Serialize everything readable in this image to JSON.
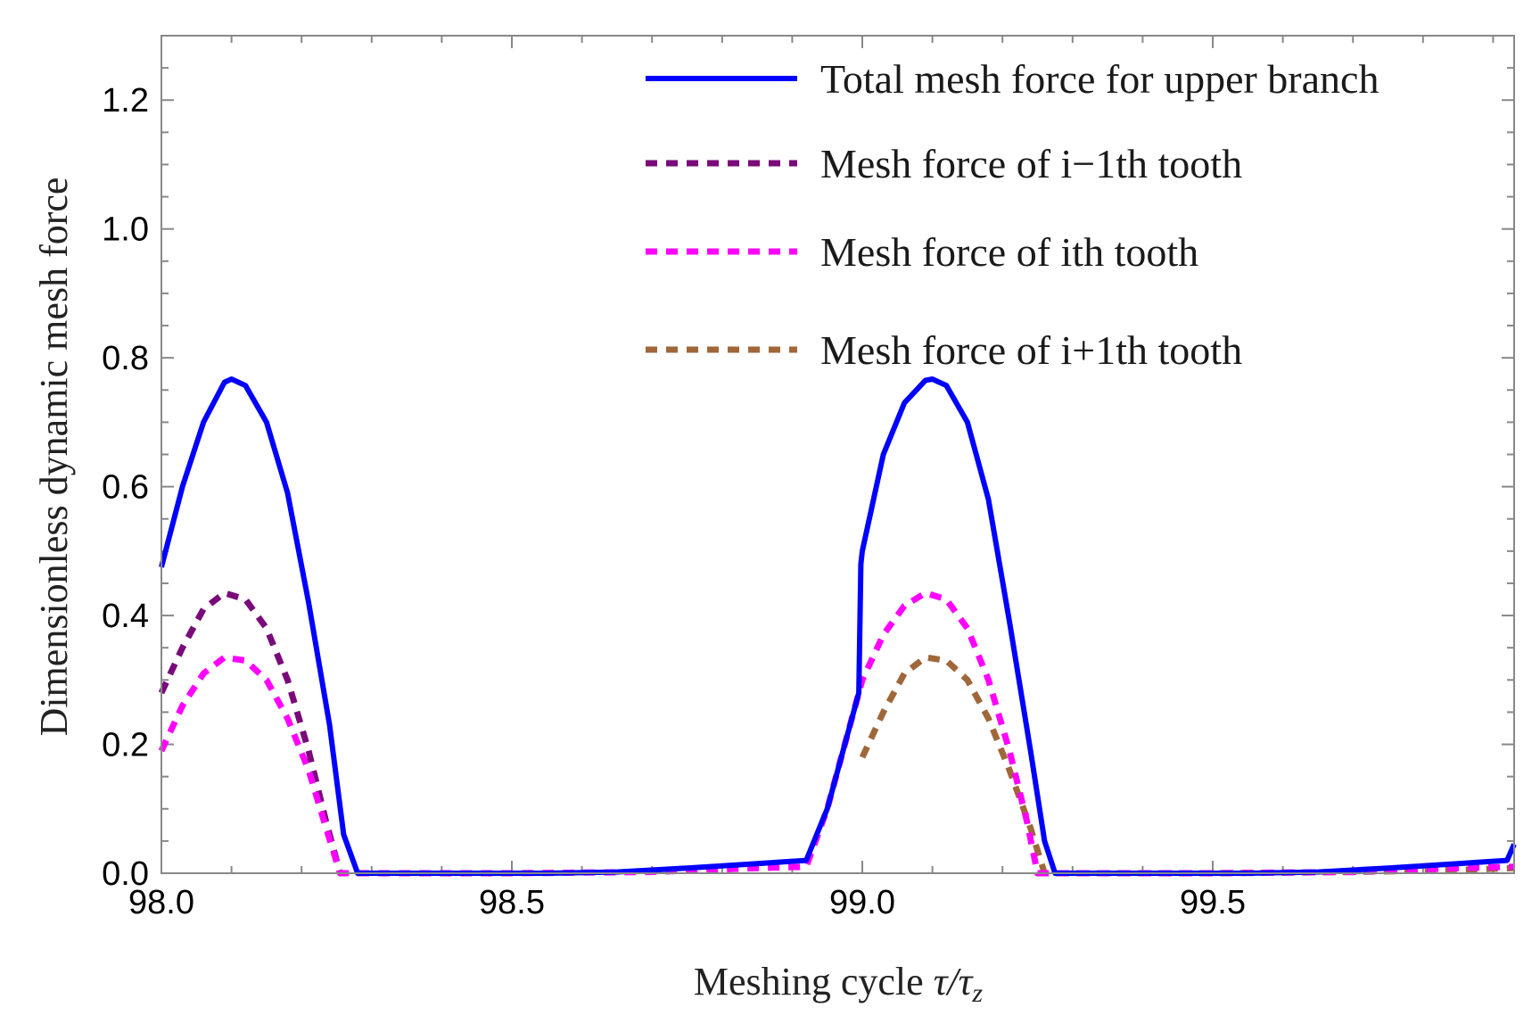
{
  "chart_data": {
    "type": "line",
    "title": "",
    "xlabel_text": "Meshing cycle",
    "xlabel_symbol": "τ/τ",
    "xlabel_subscript": "z",
    "ylabel": "Dimensionless dynamic mesh force",
    "xlim": [
      98.0,
      99.93
    ],
    "ylim": [
      0.0,
      1.3
    ],
    "x_ticks": [
      98.0,
      98.5,
      99.0,
      99.5
    ],
    "x_tick_labels": [
      "98.0",
      "98.5",
      "99.0",
      "99.5"
    ],
    "y_ticks": [
      0.0,
      0.2,
      0.4,
      0.6,
      0.8,
      1.0,
      1.2
    ],
    "y_tick_labels": [
      "0.0",
      "0.2",
      "0.4",
      "0.6",
      "0.8",
      "1.0",
      "1.2"
    ],
    "legend_position": "top-right",
    "series": [
      {
        "name": "Total mesh force for upper branch",
        "color": "#0000ff",
        "style": "solid",
        "points": [
          [
            98.0,
            0.475
          ],
          [
            98.03,
            0.6
          ],
          [
            98.06,
            0.7
          ],
          [
            98.09,
            0.762
          ],
          [
            98.1,
            0.767
          ],
          [
            98.12,
            0.757
          ],
          [
            98.15,
            0.7
          ],
          [
            98.18,
            0.59
          ],
          [
            98.21,
            0.42
          ],
          [
            98.24,
            0.23
          ],
          [
            98.26,
            0.06
          ],
          [
            98.28,
            0.0
          ],
          [
            98.4,
            0.0
          ],
          [
            98.55,
            0.0
          ],
          [
            98.65,
            0.002
          ],
          [
            98.75,
            0.008
          ],
          [
            98.85,
            0.015
          ],
          [
            98.92,
            0.02
          ],
          [
            98.95,
            0.1
          ],
          [
            98.975,
            0.2
          ],
          [
            98.995,
            0.28
          ],
          [
            98.998,
            0.48
          ],
          [
            99.0,
            0.5
          ],
          [
            99.03,
            0.65
          ],
          [
            99.06,
            0.73
          ],
          [
            99.09,
            0.765
          ],
          [
            99.1,
            0.767
          ],
          [
            99.12,
            0.757
          ],
          [
            99.15,
            0.7
          ],
          [
            99.18,
            0.58
          ],
          [
            99.21,
            0.39
          ],
          [
            99.24,
            0.19
          ],
          [
            99.26,
            0.05
          ],
          [
            99.275,
            0.0
          ],
          [
            99.4,
            0.0
          ],
          [
            99.55,
            0.0
          ],
          [
            99.65,
            0.002
          ],
          [
            99.75,
            0.008
          ],
          [
            99.85,
            0.015
          ],
          [
            99.92,
            0.02
          ],
          [
            99.93,
            0.045
          ]
        ]
      },
      {
        "name": "Mesh force of i−1th tooth",
        "color": "#7a0a7a",
        "style": "dashed",
        "points": [
          [
            98.0,
            0.28
          ],
          [
            98.03,
            0.35
          ],
          [
            98.06,
            0.41
          ],
          [
            98.09,
            0.435
          ],
          [
            98.12,
            0.425
          ],
          [
            98.15,
            0.38
          ],
          [
            98.18,
            0.3
          ],
          [
            98.21,
            0.19
          ],
          [
            98.235,
            0.08
          ],
          [
            98.255,
            0.0
          ],
          [
            98.3,
            0.0
          ]
        ]
      },
      {
        "name": "Mesh force of ith tooth",
        "color": "#ff00ff",
        "style": "dashed",
        "points": [
          [
            98.0,
            0.19
          ],
          [
            98.03,
            0.26
          ],
          [
            98.06,
            0.31
          ],
          [
            98.09,
            0.335
          ],
          [
            98.12,
            0.33
          ],
          [
            98.15,
            0.3
          ],
          [
            98.18,
            0.24
          ],
          [
            98.21,
            0.16
          ],
          [
            98.235,
            0.07
          ],
          [
            98.255,
            0.0
          ],
          [
            98.5,
            0.0
          ],
          [
            98.7,
            0.002
          ],
          [
            98.85,
            0.008
          ],
          [
            98.92,
            0.01
          ],
          [
            98.95,
            0.1
          ],
          [
            98.975,
            0.2
          ],
          [
            98.995,
            0.28
          ],
          [
            99.0,
            0.3
          ],
          [
            99.03,
            0.37
          ],
          [
            99.06,
            0.415
          ],
          [
            99.09,
            0.435
          ],
          [
            99.12,
            0.425
          ],
          [
            99.15,
            0.38
          ],
          [
            99.18,
            0.3
          ],
          [
            99.21,
            0.19
          ],
          [
            99.235,
            0.08
          ],
          [
            99.25,
            0.0
          ],
          [
            99.5,
            0.0
          ],
          [
            99.7,
            0.002
          ],
          [
            99.85,
            0.008
          ],
          [
            99.93,
            0.01
          ]
        ]
      },
      {
        "name": "Mesh force of i+1th tooth",
        "color": "#a0673a",
        "style": "dashed",
        "points": [
          [
            99.0,
            0.18
          ],
          [
            99.03,
            0.25
          ],
          [
            99.06,
            0.31
          ],
          [
            99.09,
            0.335
          ],
          [
            99.12,
            0.33
          ],
          [
            99.15,
            0.3
          ],
          [
            99.18,
            0.24
          ],
          [
            99.21,
            0.16
          ],
          [
            99.24,
            0.07
          ],
          [
            99.26,
            0.0
          ],
          [
            99.5,
            0.0
          ],
          [
            99.7,
            0.002
          ],
          [
            99.85,
            0.005
          ],
          [
            99.93,
            0.008
          ]
        ]
      }
    ]
  }
}
